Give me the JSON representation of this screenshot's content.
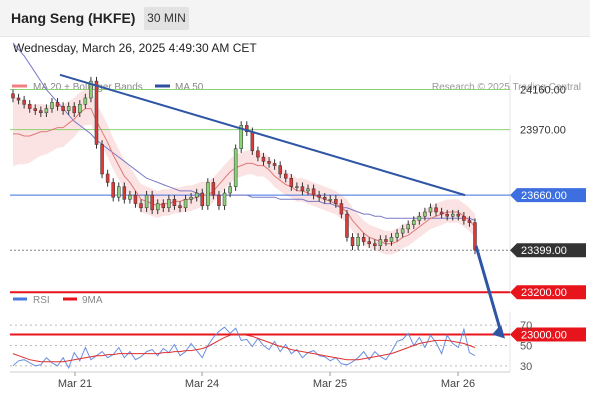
{
  "header": {
    "title": "Hang Seng (HKFE)",
    "interval": "30 MIN",
    "datetime": "Wednesday, March 26, 2025 4:49:30 AM CET"
  },
  "main_legend": {
    "items": [
      {
        "label": "MA 20 + Bollinger Bands",
        "color": "#f08080"
      },
      {
        "label": "MA 50",
        "color": "#2c4fa0"
      }
    ],
    "credit": "Research © 2025 Trading Central"
  },
  "levels": [
    {
      "value": 24160,
      "label": "24160.00",
      "kind": "resistance",
      "color": "#8fd175"
    },
    {
      "value": 23970,
      "label": "23970.00",
      "kind": "resistance",
      "color": "#8fd175"
    },
    {
      "value": 23660,
      "label": "23660.00",
      "kind": "pivot",
      "color": "#3d6fe0"
    },
    {
      "value": 23399,
      "label": "23399.00",
      "kind": "last",
      "color": "#333333"
    },
    {
      "value": 23200,
      "label": "23200.00",
      "kind": "support",
      "color": "#e8141c"
    },
    {
      "value": 23000,
      "label": "23000.00",
      "kind": "support",
      "color": "#e8141c"
    }
  ],
  "rsi_legend": {
    "items": [
      {
        "label": "RSI",
        "color": "#4a7ae0"
      },
      {
        "label": "9MA",
        "color": "#e8141c"
      }
    ]
  },
  "chart_data": [
    {
      "type": "candlestick",
      "x_labels": [
        "Mar 21",
        "Mar 24",
        "Mar 25",
        "Mar 26"
      ],
      "ylim": [
        22950,
        24300
      ],
      "close": [
        24120,
        24110,
        24090,
        24070,
        24060,
        24050,
        24070,
        24100,
        24080,
        24060,
        24080,
        24050,
        24090,
        24120,
        24200,
        23900,
        23760,
        23720,
        23650,
        23700,
        23640,
        23660,
        23620,
        23600,
        23660,
        23590,
        23620,
        23600,
        23640,
        23610,
        23600,
        23640,
        23650,
        23670,
        23610,
        23720,
        23660,
        23610,
        23670,
        23700,
        23880,
        23990,
        23960,
        23870,
        23840,
        23820,
        23810,
        23800,
        23760,
        23740,
        23700,
        23700,
        23680,
        23690,
        23660,
        23650,
        23640,
        23640,
        23620,
        23570,
        23460,
        23420,
        23460,
        23440,
        23430,
        23420,
        23450,
        23440,
        23460,
        23480,
        23500,
        23520,
        23540,
        23560,
        23580,
        23600,
        23580,
        23570,
        23560,
        23570,
        23560,
        23540,
        23530,
        23400
      ],
      "ma20": [
        23950,
        23950,
        23940,
        23940,
        23950,
        23960,
        23960,
        23970,
        23980,
        23980,
        24000,
        24020,
        24050,
        24070,
        24070,
        24010,
        23960,
        23910,
        23850,
        23800,
        23750,
        23720,
        23680,
        23640,
        23630,
        23620,
        23610,
        23620,
        23620,
        23630,
        23630,
        23640,
        23640,
        23650,
        23660,
        23660,
        23680,
        23710,
        23740,
        23770,
        23790,
        23800,
        23810,
        23810,
        23800,
        23800,
        23780,
        23750,
        23730,
        23710,
        23700,
        23680,
        23680,
        23670,
        23660,
        23650,
        23640,
        23630,
        23620,
        23600,
        23580,
        23540,
        23510,
        23480,
        23460,
        23450,
        23440,
        23430,
        23430,
        23440,
        23460,
        23470,
        23490,
        23510,
        23530,
        23550,
        23560,
        23570,
        23580,
        23580,
        23580,
        23560,
        23540,
        23510
      ],
      "ma50": [
        24380,
        24350,
        24320,
        24280,
        24240,
        24200,
        24160,
        24130,
        24100,
        24070,
        24040,
        24010,
        23990,
        23970,
        23950,
        23920,
        23900,
        23880,
        23860,
        23840,
        23820,
        23800,
        23780,
        23760,
        23740,
        23730,
        23720,
        23710,
        23700,
        23690,
        23680,
        23680,
        23680,
        23670,
        23660,
        23660,
        23660,
        23660,
        23660,
        23660,
        23660,
        23660,
        23660,
        23650,
        23650,
        23650,
        23650,
        23650,
        23640,
        23640,
        23640,
        23640,
        23640,
        23630,
        23630,
        23630,
        23620,
        23620,
        23610,
        23600,
        23600,
        23590,
        23580,
        23570,
        23570,
        23560,
        23560,
        23550,
        23550,
        23550,
        23550,
        23550,
        23550,
        23550,
        23550,
        23550,
        23550,
        23550,
        23550,
        23550,
        23550,
        23550,
        23550,
        23540
      ],
      "trendline_from": 24230,
      "trendline_to": 23660,
      "projection_to": 23000
    },
    {
      "type": "line",
      "x_labels": [
        "Mar 21",
        "Mar 24",
        "Mar 25",
        "Mar 26"
      ],
      "ylim": [
        20,
        80
      ],
      "yticks": [
        70,
        50,
        30
      ],
      "series": [
        {
          "name": "RSI",
          "values": [
            30,
            35,
            36,
            33,
            30,
            31,
            38,
            33,
            30,
            38,
            28,
            43,
            35,
            48,
            36,
            40,
            44,
            38,
            41,
            48,
            38,
            44,
            36,
            39,
            44,
            46,
            40,
            47,
            43,
            51,
            40,
            44,
            52,
            45,
            38,
            50,
            58,
            64,
            68,
            62,
            67,
            55,
            56,
            49,
            57,
            50,
            46,
            54,
            44,
            51,
            42,
            46,
            38,
            43,
            45,
            40,
            39,
            35,
            38,
            32,
            31,
            34,
            38,
            44,
            36,
            44,
            39,
            36,
            44,
            54,
            56,
            62,
            50,
            58,
            48,
            60,
            53,
            42,
            60,
            52,
            48,
            66,
            43,
            40
          ]
        },
        {
          "name": "9MA",
          "values": [
            42,
            40,
            38,
            36,
            35,
            34,
            34,
            34,
            34,
            34,
            35,
            36,
            37,
            38,
            39,
            40,
            40,
            41,
            41,
            42,
            42,
            42,
            42,
            42,
            42,
            42,
            42,
            43,
            43,
            44,
            44,
            45,
            45,
            46,
            47,
            49,
            52,
            55,
            58,
            60,
            61,
            61,
            60,
            59,
            57,
            55,
            53,
            51,
            49,
            48,
            46,
            45,
            44,
            43,
            42,
            41,
            40,
            39,
            38,
            37,
            36,
            36,
            36,
            37,
            38,
            39,
            40,
            41,
            42,
            44,
            46,
            48,
            50,
            52,
            53,
            54,
            55,
            55,
            55,
            54,
            53,
            52,
            50,
            48
          ]
        }
      ]
    }
  ]
}
